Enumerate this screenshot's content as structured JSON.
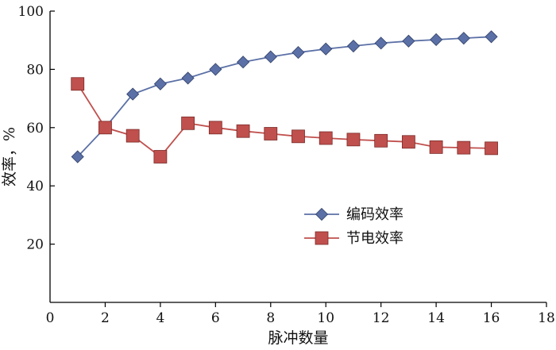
{
  "chart_data": {
    "type": "line",
    "xlabel": "脉冲数量",
    "ylabel": "效率，%",
    "xlim": [
      0,
      18
    ],
    "ylim": [
      0,
      100
    ],
    "xticks": [
      0,
      2,
      4,
      6,
      8,
      10,
      12,
      14,
      16,
      18
    ],
    "yticks": [
      20,
      40,
      60,
      80,
      100
    ],
    "grid": false,
    "legend_position": "center-right",
    "series": [
      {
        "name": "编码效率",
        "marker": "diamond",
        "color": "#5b70a6",
        "x": [
          1,
          2,
          3,
          4,
          5,
          6,
          7,
          8,
          9,
          10,
          11,
          12,
          13,
          14,
          15,
          16
        ],
        "y": [
          50,
          60,
          71.5,
          75,
          77,
          80,
          82.5,
          84.3,
          85.8,
          87,
          88,
          89,
          89.7,
          90.2,
          90.7,
          91.2
        ]
      },
      {
        "name": "节电效率",
        "marker": "square",
        "color": "#c0504d",
        "x": [
          1,
          2,
          3,
          4,
          5,
          6,
          7,
          8,
          9,
          10,
          11,
          12,
          13,
          14,
          15,
          16
        ],
        "y": [
          75,
          60,
          57.2,
          50,
          61.5,
          60,
          58.8,
          57.9,
          57,
          56.4,
          55.9,
          55.5,
          55.1,
          53.3,
          53.1,
          52.9
        ]
      }
    ]
  }
}
